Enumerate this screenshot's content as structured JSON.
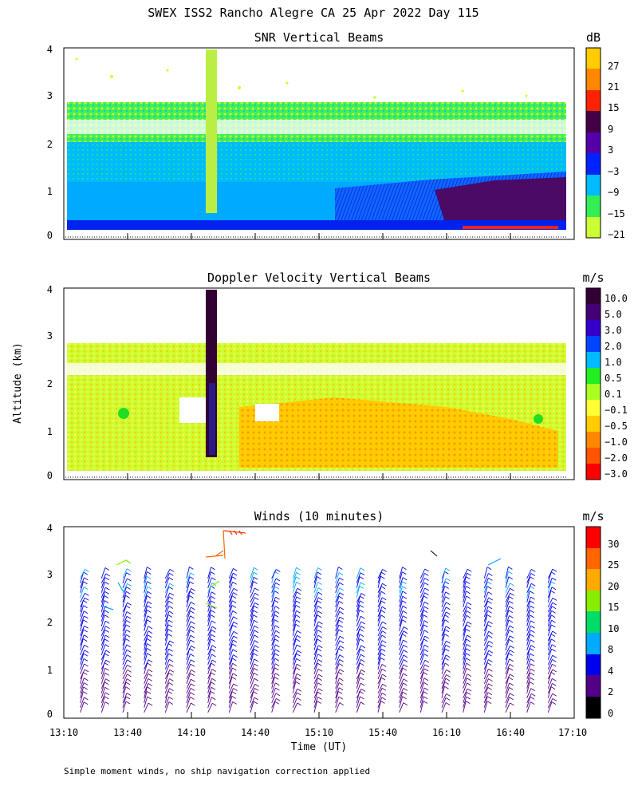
{
  "title": "SWEX ISS2 Rancho Alegre CA  25 Apr 2022 Day 115",
  "footnote": "Simple moment winds, no ship navigation correction applied",
  "ylabel": "Altitude (km)",
  "xlabel": "Time (UT)",
  "x_ticks": [
    "13:10",
    "13:40",
    "14:10",
    "14:40",
    "15:10",
    "15:40",
    "16:10",
    "16:40",
    "17:10"
  ],
  "y_ticks": [
    "0",
    "1",
    "2",
    "3",
    "4"
  ],
  "chart_data": [
    {
      "type": "heatmap",
      "title": "SNR Vertical Beams",
      "xlabel": "",
      "ylabel": "Altitude (km)",
      "x_range_minutes_utc": [
        790,
        1030
      ],
      "ylim": [
        0,
        4
      ],
      "colorbar_unit": "dB",
      "colorbar_labels": [
        "27",
        "21",
        "15",
        "9",
        "3",
        "−3",
        "−9",
        "−15",
        "−21"
      ],
      "colorbar_colors": [
        "#ffcc00",
        "#ff8800",
        "#ff2200",
        "#440044",
        "#5500aa",
        "#0022ff",
        "#00bbff",
        "#33ee55",
        "#ccff33"
      ],
      "data_top_km": 2.7,
      "data_bottom_km": 0.15
    },
    {
      "type": "heatmap",
      "title": "Doppler Velocity Vertical Beams",
      "xlabel": "",
      "ylabel": "Altitude (km)",
      "x_range_minutes_utc": [
        790,
        1030
      ],
      "ylim": [
        0,
        4
      ],
      "colorbar_unit": "m/s",
      "colorbar_labels": [
        "10.0",
        "5.0",
        "3.0",
        "2.0",
        "1.0",
        "0.5",
        "0.1",
        "−0.1",
        "−0.5",
        "−1.0",
        "−2.0",
        "−3.0"
      ],
      "colorbar_colors": [
        "#330033",
        "#440077",
        "#3300cc",
        "#0044ff",
        "#00bbff",
        "#22ee22",
        "#aaff22",
        "#ffff33",
        "#ffcc00",
        "#ff8800",
        "#ff5500",
        "#ff0000"
      ],
      "data_top_km": 2.8,
      "data_bottom_km": 0.15
    },
    {
      "type": "scatter",
      "title": "Winds (10 minutes)",
      "xlabel": "Time (UT)",
      "ylabel": "Altitude (km)",
      "x_range_minutes_utc": [
        790,
        1030
      ],
      "ylim": [
        0,
        4
      ],
      "colorbar_unit": "m/s",
      "colorbar_labels": [
        "30",
        "25",
        "20",
        "15",
        "10",
        "8",
        "4",
        "2",
        "0"
      ],
      "colorbar_colors": [
        "#ff0000",
        "#ff6600",
        "#ffaa00",
        "#88ee00",
        "#00dd66",
        "#00aaff",
        "#0000ee",
        "#550088",
        "#000000"
      ],
      "profile_times_utc": [
        "13:20",
        "13:30",
        "13:40",
        "13:50",
        "14:00",
        "14:10",
        "14:20",
        "14:30",
        "14:40",
        "14:50",
        "15:00",
        "15:10",
        "15:20",
        "15:30",
        "15:40",
        "15:50",
        "16:00",
        "16:10",
        "16:20",
        "16:30",
        "16:40",
        "16:50",
        "17:00"
      ]
    }
  ]
}
